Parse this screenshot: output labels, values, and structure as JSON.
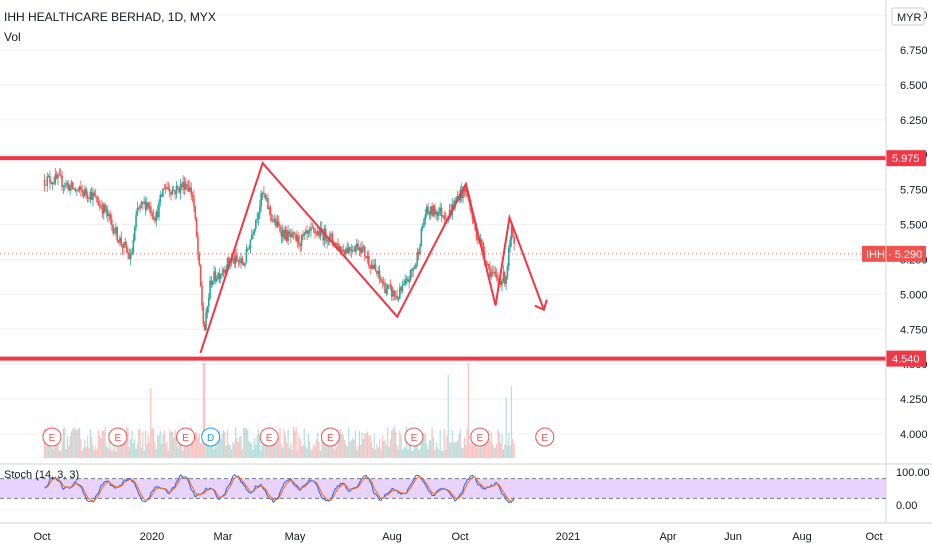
{
  "header": {
    "symbol_line": "IHH HEALTHCARE BERHAD, 1D, MYX",
    "volume_label": "Vol"
  },
  "colors": {
    "up": "#26a69a",
    "down": "#ef5350",
    "line_red": "#f23645",
    "stoch_k": "#2962ff",
    "stoch_d": "#ff6d00",
    "stoch_band": "#e1c8fa",
    "grid": "#eef0f3",
    "axis_text": "#131722"
  },
  "chart_data": {
    "type": "candlestick",
    "price_axis": {
      "unit": "MYR",
      "ticks": [
        "7.000",
        "6.750",
        "6.500",
        "6.250",
        "6.000",
        "5.750",
        "5.500",
        "5.250",
        "5.000",
        "4.750",
        "4.500",
        "4.250",
        "4.000"
      ],
      "range": [
        3.9,
        7.05
      ]
    },
    "time_axis": {
      "ticks": [
        "Oct",
        "2020",
        "Mar",
        "May",
        "Aug",
        "Oct",
        "2021",
        "Apr",
        "Jun",
        "Aug",
        "Oct"
      ],
      "range_days": [
        -110,
        440
      ]
    },
    "levels": [
      {
        "price": 5.975,
        "label": "5.975"
      },
      {
        "price": 4.54,
        "label": "4.540"
      }
    ],
    "last_price": {
      "symbol": "IHH",
      "price": 5.29,
      "label": "IHH · 5.290"
    },
    "pattern_polyline": [
      {
        "day": 63,
        "price": 4.58
      },
      {
        "day": 130,
        "price": 5.94
      },
      {
        "day": 275,
        "price": 4.84
      },
      {
        "day": 349,
        "price": 5.79
      },
      {
        "day": 381,
        "price": 4.92
      },
      {
        "day": 396,
        "price": 5.55
      },
      {
        "day": 433,
        "price": 4.89
      }
    ],
    "price_path": [
      {
        "day": -105,
        "price": 5.82
      },
      {
        "day": -90,
        "price": 5.82
      },
      {
        "day": -70,
        "price": 5.74
      },
      {
        "day": -55,
        "price": 5.72
      },
      {
        "day": -40,
        "price": 5.6
      },
      {
        "day": -25,
        "price": 5.4
      },
      {
        "day": -12,
        "price": 5.25
      },
      {
        "day": -5,
        "price": 5.6
      },
      {
        "day": 5,
        "price": 5.66
      },
      {
        "day": 15,
        "price": 5.55
      },
      {
        "day": 24,
        "price": 5.78
      },
      {
        "day": 35,
        "price": 5.74
      },
      {
        "day": 48,
        "price": 5.8
      },
      {
        "day": 55,
        "price": 5.7
      },
      {
        "day": 62,
        "price": 5.15
      },
      {
        "day": 67,
        "price": 4.72
      },
      {
        "day": 74,
        "price": 5.1
      },
      {
        "day": 85,
        "price": 5.16
      },
      {
        "day": 95,
        "price": 5.25
      },
      {
        "day": 110,
        "price": 5.22
      },
      {
        "day": 120,
        "price": 5.48
      },
      {
        "day": 130,
        "price": 5.72
      },
      {
        "day": 142,
        "price": 5.52
      },
      {
        "day": 155,
        "price": 5.42
      },
      {
        "day": 170,
        "price": 5.38
      },
      {
        "day": 185,
        "price": 5.45
      },
      {
        "day": 200,
        "price": 5.42
      },
      {
        "day": 215,
        "price": 5.32
      },
      {
        "day": 235,
        "price": 5.35
      },
      {
        "day": 250,
        "price": 5.18
      },
      {
        "day": 262,
        "price": 5.05
      },
      {
        "day": 275,
        "price": 4.98
      },
      {
        "day": 285,
        "price": 5.08
      },
      {
        "day": 295,
        "price": 5.22
      },
      {
        "day": 305,
        "price": 5.58
      },
      {
        "day": 318,
        "price": 5.6
      },
      {
        "day": 330,
        "price": 5.56
      },
      {
        "day": 342,
        "price": 5.72
      },
      {
        "day": 350,
        "price": 5.74
      },
      {
        "day": 358,
        "price": 5.48
      },
      {
        "day": 366,
        "price": 5.35
      },
      {
        "day": 374,
        "price": 5.18
      },
      {
        "day": 382,
        "price": 5.1
      },
      {
        "day": 392,
        "price": 5.12
      },
      {
        "day": 398,
        "price": 5.45
      },
      {
        "day": 402,
        "price": 5.29
      }
    ],
    "volume": {
      "max": 2.0,
      "spikes": [
        {
          "day": 10,
          "value": 1.55
        },
        {
          "day": 67,
          "value": 2.4
        },
        {
          "day": 330,
          "value": 1.85
        },
        {
          "day": 352,
          "value": 2.35
        },
        {
          "day": 392,
          "value": 1.35
        },
        {
          "day": 398,
          "value": 1.6
        }
      ]
    },
    "events": [
      {
        "day": -97,
        "label": "E",
        "type": "earnings"
      },
      {
        "day": -26,
        "label": "E",
        "type": "earnings"
      },
      {
        "day": 47,
        "label": "E",
        "type": "earnings"
      },
      {
        "day": 74,
        "label": "D",
        "type": "dividend"
      },
      {
        "day": 137,
        "label": "E",
        "type": "earnings"
      },
      {
        "day": 203,
        "label": "E",
        "type": "earnings"
      },
      {
        "day": 293,
        "label": "E",
        "type": "earnings"
      },
      {
        "day": 364,
        "label": "E",
        "type": "earnings"
      },
      {
        "day": 434,
        "label": "E",
        "type": "earnings"
      }
    ],
    "stochastic": {
      "name": "Stoch (14, 3, 3)",
      "ticks": [
        "100.00",
        "0.00"
      ],
      "range": [
        0,
        100
      ],
      "upper": 80,
      "lower": 20
    }
  }
}
